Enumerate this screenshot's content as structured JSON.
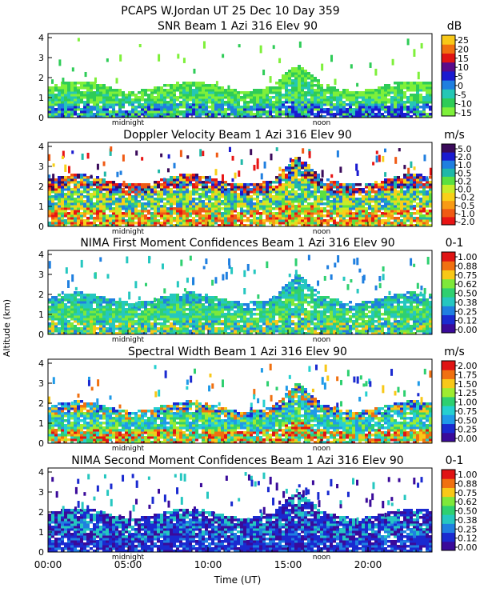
{
  "header": {
    "title": "PCAPS W.Jordan UT  25 Dec 10 Day 359"
  },
  "axes": {
    "ylabel": "Altitude (km)",
    "xlabel": "Time (UT)",
    "x_ticks": [
      "00:00",
      "05:00",
      "10:00",
      "15:00",
      "20:00"
    ],
    "x_tick_values": [
      0,
      5,
      10,
      15,
      20
    ],
    "x_range": [
      0,
      24
    ],
    "markers": [
      {
        "label": "midnight",
        "x": 5
      },
      {
        "label": "noon",
        "x": 17.1
      }
    ]
  },
  "chart_data": [
    {
      "type": "heatmap",
      "title": "SNR Beam 1 Azi 316 Elev 90",
      "units": "dB",
      "ylim": [
        0,
        4.2
      ],
      "y_ticks": [
        "0",
        "1",
        "2",
        "3",
        "4"
      ],
      "colorbar_ticks": [
        "25",
        "20",
        "15",
        "10",
        "5",
        "0",
        "-5",
        "-10",
        "-15"
      ],
      "colorbar_range": [
        -17.5,
        27.5
      ],
      "colors": [
        "#7ef03a",
        "#2ecc57",
        "#25c7b5",
        "#1f7fe0",
        "#1a1ad0",
        "#5a0a8a",
        "#e01414",
        "#f07010",
        "#f8c818"
      ]
    },
    {
      "type": "heatmap",
      "title": "Doppler Velocity Beam 1 Azi 316 Elev 90",
      "units": "m/s",
      "ylim": [
        0,
        4.2
      ],
      "y_ticks": [
        "0",
        "1",
        "2",
        "3",
        "4"
      ],
      "colorbar_ticks": [
        "5.0",
        "2.0",
        "1.0",
        "0.5",
        "0.2",
        "0.0",
        "-0.2",
        "-0.5",
        "-1.0",
        "-2.0"
      ],
      "colors": [
        "#e81414",
        "#f05a14",
        "#f89a14",
        "#f8d018",
        "#c8ec28",
        "#5ae040",
        "#1fb8a8",
        "#1f7fe0",
        "#1a1ad0",
        "#3a0a5a"
      ]
    },
    {
      "type": "heatmap",
      "title": "NIMA First Moment Confidences Beam 1 Azi 316 Elev 90",
      "units": "0-1",
      "ylim": [
        0,
        4.2
      ],
      "y_ticks": [
        "0",
        "1",
        "2",
        "3",
        "4"
      ],
      "colorbar_ticks": [
        "1.00",
        "0.88",
        "0.75",
        "0.62",
        "0.50",
        "0.38",
        "0.25",
        "0.12",
        "0.00"
      ],
      "colors": [
        "#3a0a9a",
        "#1a2ad0",
        "#1f7fe0",
        "#25c7c0",
        "#2ed070",
        "#7ee83a",
        "#f8c818",
        "#f07010",
        "#e01414"
      ]
    },
    {
      "type": "heatmap",
      "title": "Spectral Width Beam 1 Azi 316 Elev 90",
      "units": "m/s",
      "ylim": [
        0,
        4.2
      ],
      "y_ticks": [
        "0",
        "1",
        "2",
        "3",
        "4"
      ],
      "colorbar_ticks": [
        "2.00",
        "1.75",
        "1.50",
        "1.25",
        "1.00",
        "0.75",
        "0.50",
        "0.25",
        "0.00"
      ],
      "colors": [
        "#3a0a9a",
        "#1a2ad0",
        "#1f9ae8",
        "#25d0d0",
        "#2ed070",
        "#9eec30",
        "#f8c818",
        "#f07010",
        "#e01414"
      ]
    },
    {
      "type": "heatmap",
      "title": "NIMA Second Moment Confidences Beam 1 Azi 316 Elev 90",
      "units": "0-1",
      "ylim": [
        0,
        4.2
      ],
      "y_ticks": [
        "0",
        "1",
        "2",
        "3",
        "4"
      ],
      "colorbar_ticks": [
        "1.00",
        "0.88",
        "0.75",
        "0.62",
        "0.50",
        "0.38",
        "0.25",
        "0.12",
        "0.00"
      ],
      "colors": [
        "#3a0a9a",
        "#1a2ad0",
        "#1f7fe0",
        "#25c7c0",
        "#2ed070",
        "#7ee83a",
        "#f8c818",
        "#f07010",
        "#e01414"
      ]
    }
  ]
}
